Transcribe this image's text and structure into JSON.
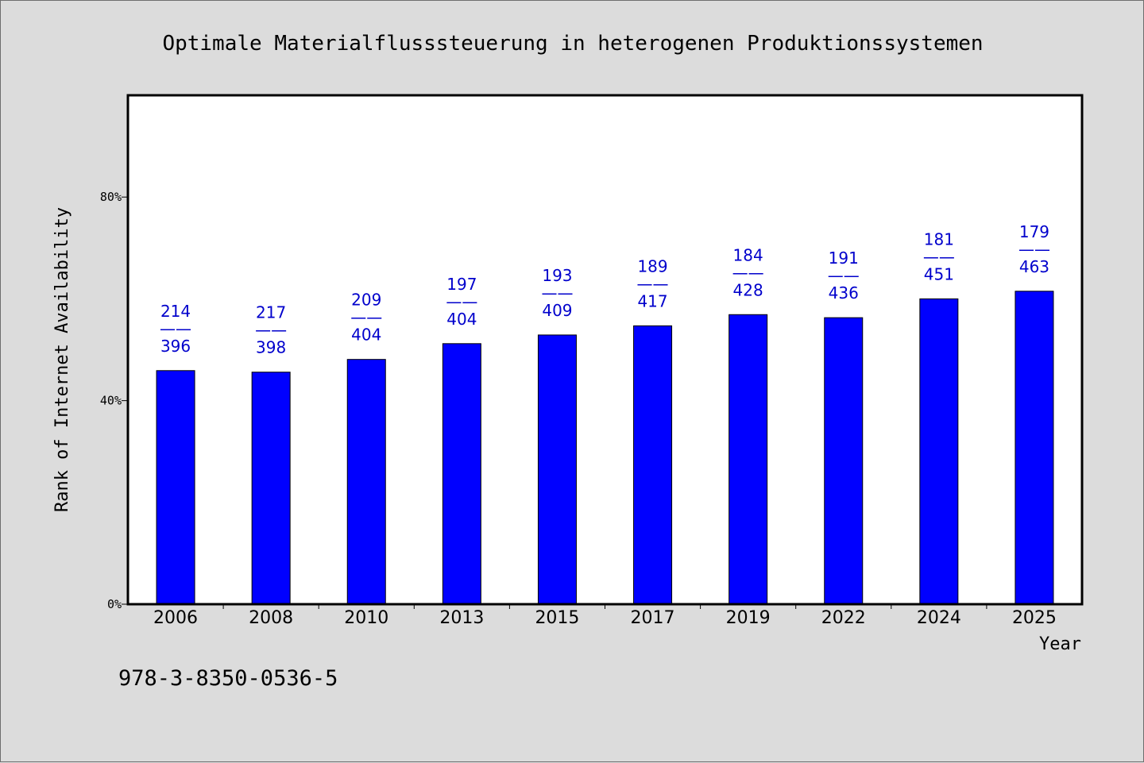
{
  "chart_data": {
    "type": "bar",
    "title": "Optimale Materialflusssteuerung in heterogenen Produktionssystemen",
    "xlabel": "Year",
    "ylabel": "Rank of Internet Availability",
    "categories": [
      "2006",
      "2008",
      "2010",
      "2013",
      "2015",
      "2017",
      "2019",
      "2022",
      "2024",
      "2025"
    ],
    "values": [
      45.9,
      45.6,
      48.1,
      51.2,
      52.9,
      54.7,
      56.9,
      56.3,
      60.0,
      61.5
    ],
    "value_unit": "%",
    "bar_labels": [
      {
        "top": "214",
        "sep": "——",
        "bottom": "396"
      },
      {
        "top": "217",
        "sep": "——",
        "bottom": "398"
      },
      {
        "top": "209",
        "sep": "——",
        "bottom": "404"
      },
      {
        "top": "197",
        "sep": "——",
        "bottom": "404"
      },
      {
        "top": "193",
        "sep": "——",
        "bottom": "409"
      },
      {
        "top": "189",
        "sep": "——",
        "bottom": "417"
      },
      {
        "top": "184",
        "sep": "——",
        "bottom": "428"
      },
      {
        "top": "191",
        "sep": "——",
        "bottom": "436"
      },
      {
        "top": "181",
        "sep": "——",
        "bottom": "451"
      },
      {
        "top": "179",
        "sep": "——",
        "bottom": "463"
      }
    ],
    "ylim": [
      0,
      100
    ],
    "yticks": [
      0,
      40,
      80
    ],
    "ytick_labels": [
      "0%",
      "40%",
      "80%"
    ],
    "grid": false,
    "legend": "none",
    "colors": {
      "bar": "#0000ff",
      "bar_edge": "#000000",
      "data_label": "#0000cc",
      "plot_bg": "#ffffff",
      "page_bg": "#dcdcdc"
    }
  },
  "footer": {
    "isbn": "978-3-8350-0536-5"
  }
}
